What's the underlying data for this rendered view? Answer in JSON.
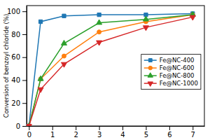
{
  "chart_data": {
    "type": "line",
    "y_label": "Conversion of benzoyl chloride (%)",
    "x": [
      0,
      0.5,
      1.5,
      3,
      5,
      7
    ],
    "series": [
      {
        "name": "Fe@NC-400",
        "marker": "square",
        "values": [
          0,
          91,
          96,
          97,
          97,
          98
        ]
      },
      {
        "name": "Fe@NC-600",
        "marker": "circle",
        "values": [
          0,
          41,
          61,
          82,
          91,
          97
        ]
      },
      {
        "name": "Fe@NC-800",
        "marker": "triangle-up",
        "values": [
          0,
          41,
          72,
          90,
          93,
          97
        ]
      },
      {
        "name": "Fe@NC-1000",
        "marker": "triangle-down",
        "values": [
          0,
          32,
          54,
          73,
          86,
          95
        ]
      }
    ],
    "xlim": [
      -0.1,
      7.5
    ],
    "ylim": [
      0,
      105
    ],
    "xticks": [
      0,
      1,
      2,
      3,
      4,
      5,
      6,
      7
    ],
    "yticks": [
      0,
      20,
      40,
      60,
      80,
      100
    ],
    "grid": false,
    "legend": "right"
  }
}
